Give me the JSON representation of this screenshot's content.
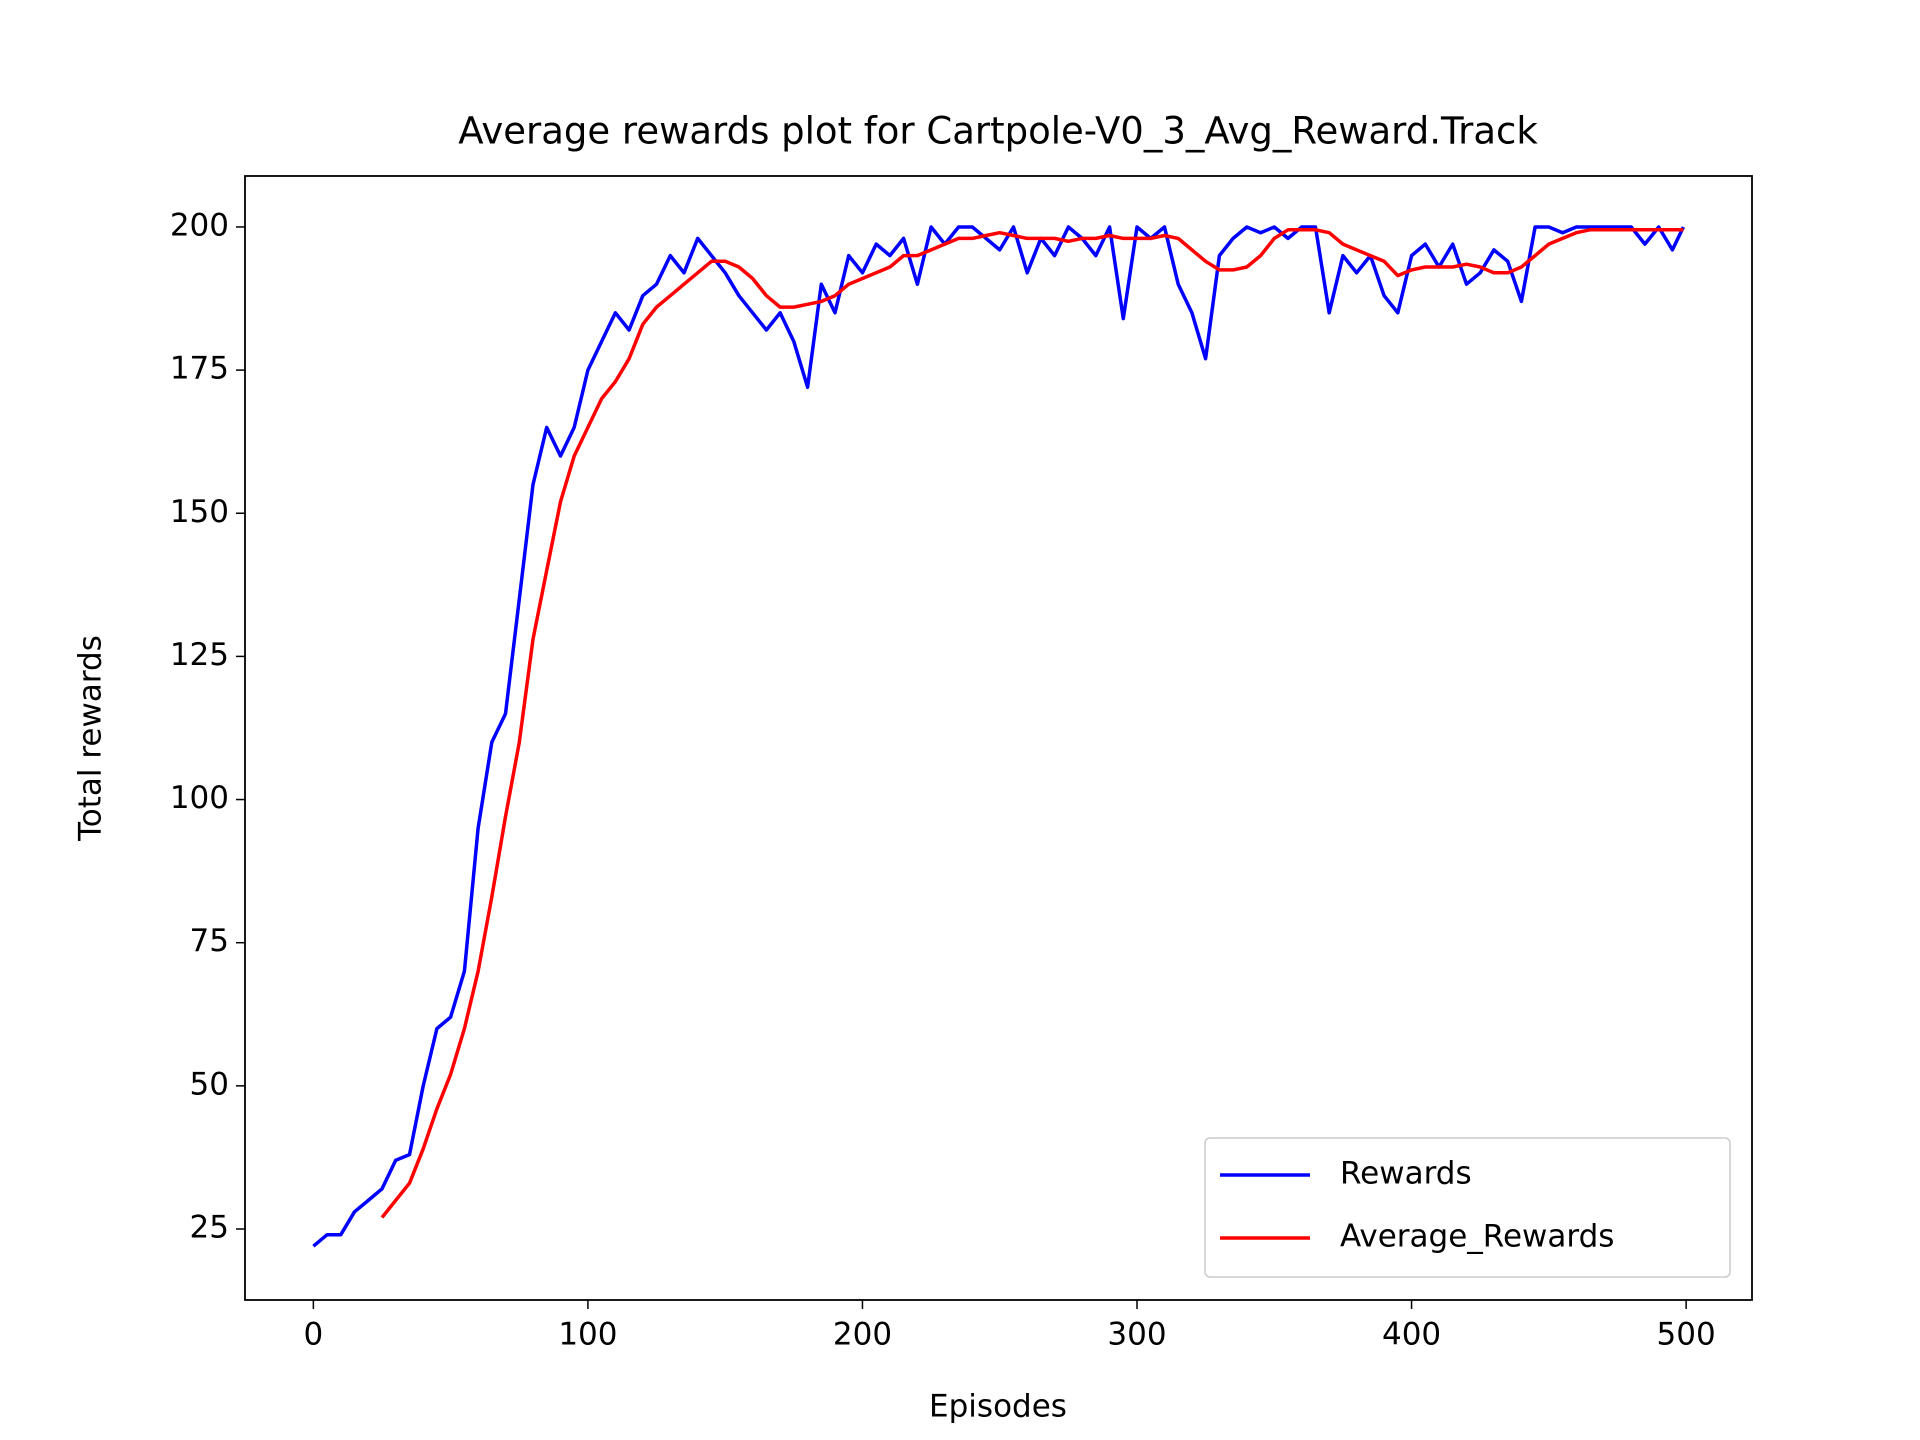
{
  "chart_data": {
    "type": "line",
    "title": "Average rewards plot for Cartpole-V0_3_Avg_Reward.Track",
    "xlabel": "Episodes",
    "ylabel": "Total rewards",
    "x": [
      0,
      5,
      10,
      15,
      20,
      25,
      30,
      35,
      40,
      45,
      50,
      55,
      60,
      65,
      70,
      75,
      80,
      85,
      90,
      95,
      100,
      105,
      110,
      115,
      120,
      125,
      130,
      135,
      140,
      145,
      150,
      155,
      160,
      165,
      170,
      175,
      180,
      185,
      190,
      195,
      200,
      205,
      210,
      215,
      220,
      225,
      230,
      235,
      240,
      245,
      250,
      255,
      260,
      265,
      270,
      275,
      280,
      285,
      290,
      295,
      300,
      305,
      310,
      315,
      320,
      325,
      330,
      335,
      340,
      345,
      350,
      355,
      360,
      365,
      370,
      375,
      380,
      385,
      390,
      395,
      400,
      405,
      410,
      415,
      420,
      425,
      430,
      435,
      440,
      445,
      450,
      455,
      460,
      465,
      470,
      475,
      480,
      485,
      490,
      495,
      499
    ],
    "series": [
      {
        "name": "Rewards",
        "color": "#0000ff",
        "values": [
          22,
          24,
          24,
          28,
          30,
          32,
          37,
          38,
          50,
          60,
          62,
          70,
          95,
          110,
          115,
          135,
          155,
          165,
          160,
          165,
          175,
          180,
          185,
          182,
          188,
          190,
          195,
          192,
          198,
          195,
          192,
          188,
          185,
          182,
          185,
          180,
          172,
          190,
          185,
          195,
          192,
          197,
          195,
          198,
          190,
          200,
          197,
          200,
          200,
          198,
          196,
          200,
          192,
          198,
          195,
          200,
          198,
          195,
          200,
          184,
          200,
          198,
          200,
          190,
          185,
          177,
          195,
          198,
          200,
          199,
          200,
          198,
          200,
          200,
          185,
          195,
          192,
          195,
          188,
          185,
          195,
          197,
          193,
          197,
          190,
          192,
          196,
          194,
          187,
          200,
          200,
          199,
          200,
          200,
          200,
          200,
          200,
          197,
          200,
          196,
          200
        ]
      },
      {
        "name": "Average_Rewards",
        "color": "#ff0000",
        "values": [
          null,
          null,
          null,
          null,
          null,
          27,
          30,
          33,
          39,
          46,
          52,
          60,
          70,
          83,
          97,
          110,
          128,
          140,
          152,
          160,
          165,
          170,
          173,
          177,
          183,
          186,
          188,
          190,
          192,
          194,
          194,
          193,
          191,
          188,
          186,
          186,
          186.5,
          187,
          188,
          190,
          191,
          192,
          193,
          195,
          195,
          196,
          197,
          198,
          198,
          198.5,
          199,
          198.5,
          198,
          198,
          198,
          197.5,
          198,
          198,
          198.5,
          198,
          198,
          198,
          198.5,
          198,
          196,
          194,
          192.5,
          192.5,
          193,
          195,
          198,
          199.5,
          199.5,
          199.5,
          199,
          197,
          196,
          195,
          194,
          191.5,
          192.5,
          193,
          193,
          193,
          193.5,
          193,
          192,
          192,
          193,
          195,
          197,
          198,
          199,
          199.5,
          199.5,
          199.5,
          199.5,
          199.5,
          199.5,
          199.5,
          199.5
        ]
      }
    ],
    "xlim": [
      -24.9,
      524.0
    ],
    "ylim": [
      12.6,
      208.9
    ],
    "xticks": [
      0,
      100,
      200,
      300,
      400,
      500
    ],
    "yticks": [
      25,
      50,
      75,
      100,
      125,
      150,
      175,
      200
    ],
    "legend": "lower right"
  }
}
